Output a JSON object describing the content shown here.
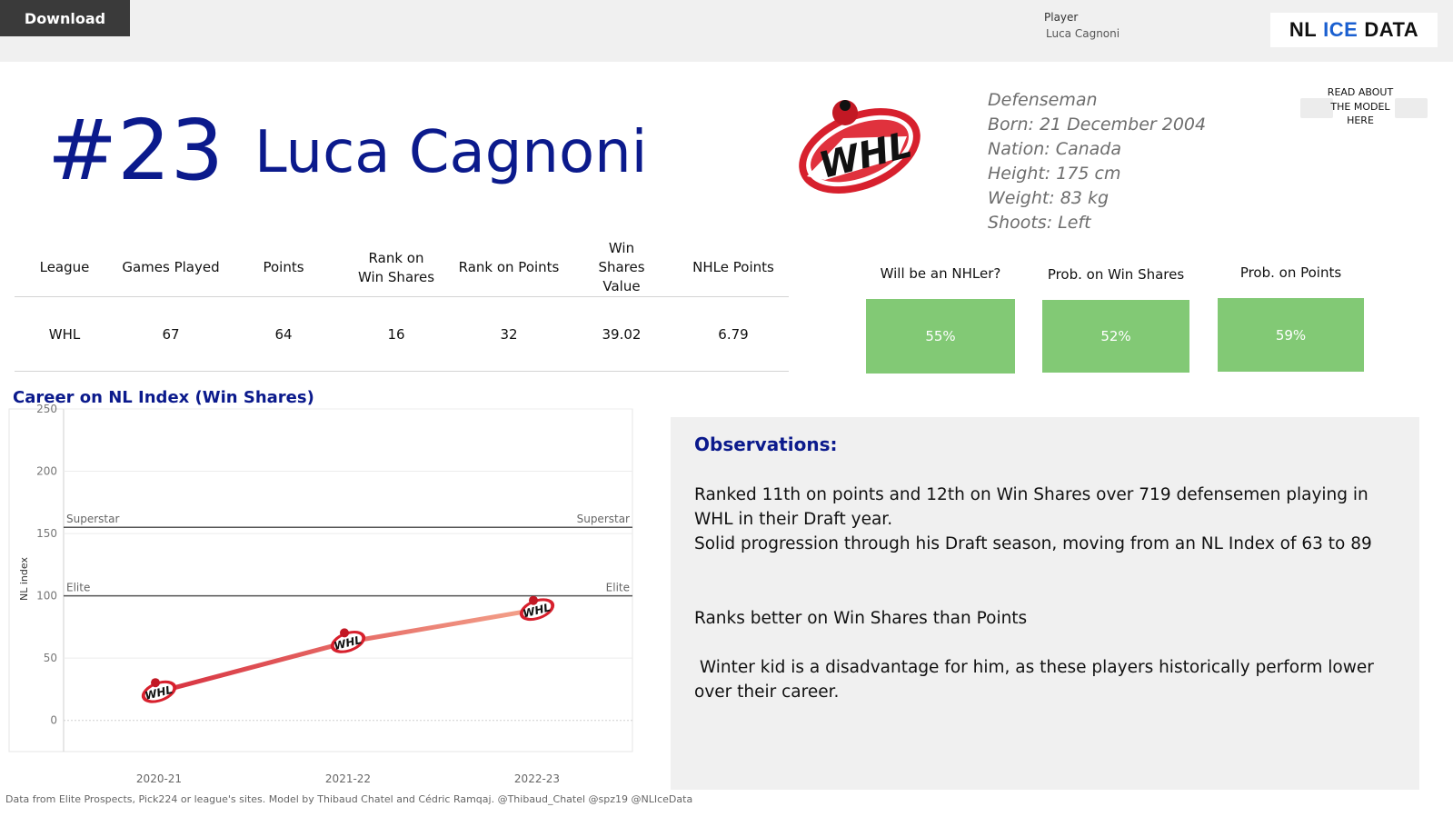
{
  "topbar": {
    "download_label": "Download",
    "player_filter_label": "Player",
    "player_filter_value": "Luca Cagnoni",
    "logo": {
      "part1": "NL",
      "part2": "ICE",
      "part3": "DATA"
    }
  },
  "player": {
    "jersey": "#23",
    "name": "Luca Cagnoni",
    "league_logo_icon": "whl-logo-icon",
    "bio": [
      "Defenseman",
      "Born: 21 December 2004",
      "Nation: Canada",
      "Height: 175 cm",
      "Weight: 83 kg",
      "Shoots: Left"
    ]
  },
  "model_link": {
    "line1": "READ ABOUT",
    "line2": "THE MODEL",
    "line3": "HERE"
  },
  "stats_table": {
    "headers": [
      "League",
      "Games Played",
      "Points",
      "Rank on Win Shares",
      "Rank on Points",
      "Win Shares Value",
      "NHLe Points"
    ],
    "rows": [
      [
        "WHL",
        "67",
        "64",
        "16",
        "32",
        "39.02",
        "6.79"
      ]
    ]
  },
  "probabilities": [
    {
      "title": "Will be an NHLer?",
      "value": "55%"
    },
    {
      "title": "Prob. on Win Shares",
      "value": "52%"
    },
    {
      "title": "Prob. on Points",
      "value": "59%"
    }
  ],
  "colors": {
    "accent": "#0b1a8c",
    "prob_fill": "#82c975",
    "line_start": "#d7303f",
    "line_end": "#f4a48c"
  },
  "chart_data": {
    "type": "line",
    "title": "Career on NL Index (Win Shares)",
    "ylabel": "NL index",
    "xlabel": "",
    "ylim": [
      -25,
      250
    ],
    "yticks": [
      0,
      50,
      100,
      150,
      200,
      250
    ],
    "categories": [
      "2020-21",
      "2021-22",
      "2022-23"
    ],
    "series": [
      {
        "values": [
          23,
          63,
          89
        ]
      }
    ],
    "reference_lines": [
      {
        "label": "Superstar",
        "value": 155
      },
      {
        "label": "Elite",
        "value": 100
      }
    ],
    "marker_icon": "whl-logo-icon",
    "grid": true
  },
  "observations": {
    "heading": "Observations:",
    "p1": "Ranked 11th on points and 12th on Win Shares over 719 defensemen playing in WHL in their Draft year.",
    "p2": "Solid progression through his Draft season, moving from an NL Index of 63 to 89",
    "p3": "Ranks better on Win Shares than Points",
    "p4": " Winter kid is a disadvantage for him, as these players historically perform lower over their career."
  },
  "footer": "Data from Elite Prospects, Pick224 or league's sites. Model by Thibaud Chatel and Cédric Ramqaj. @Thibaud_Chatel @spz19 @NLIceData"
}
